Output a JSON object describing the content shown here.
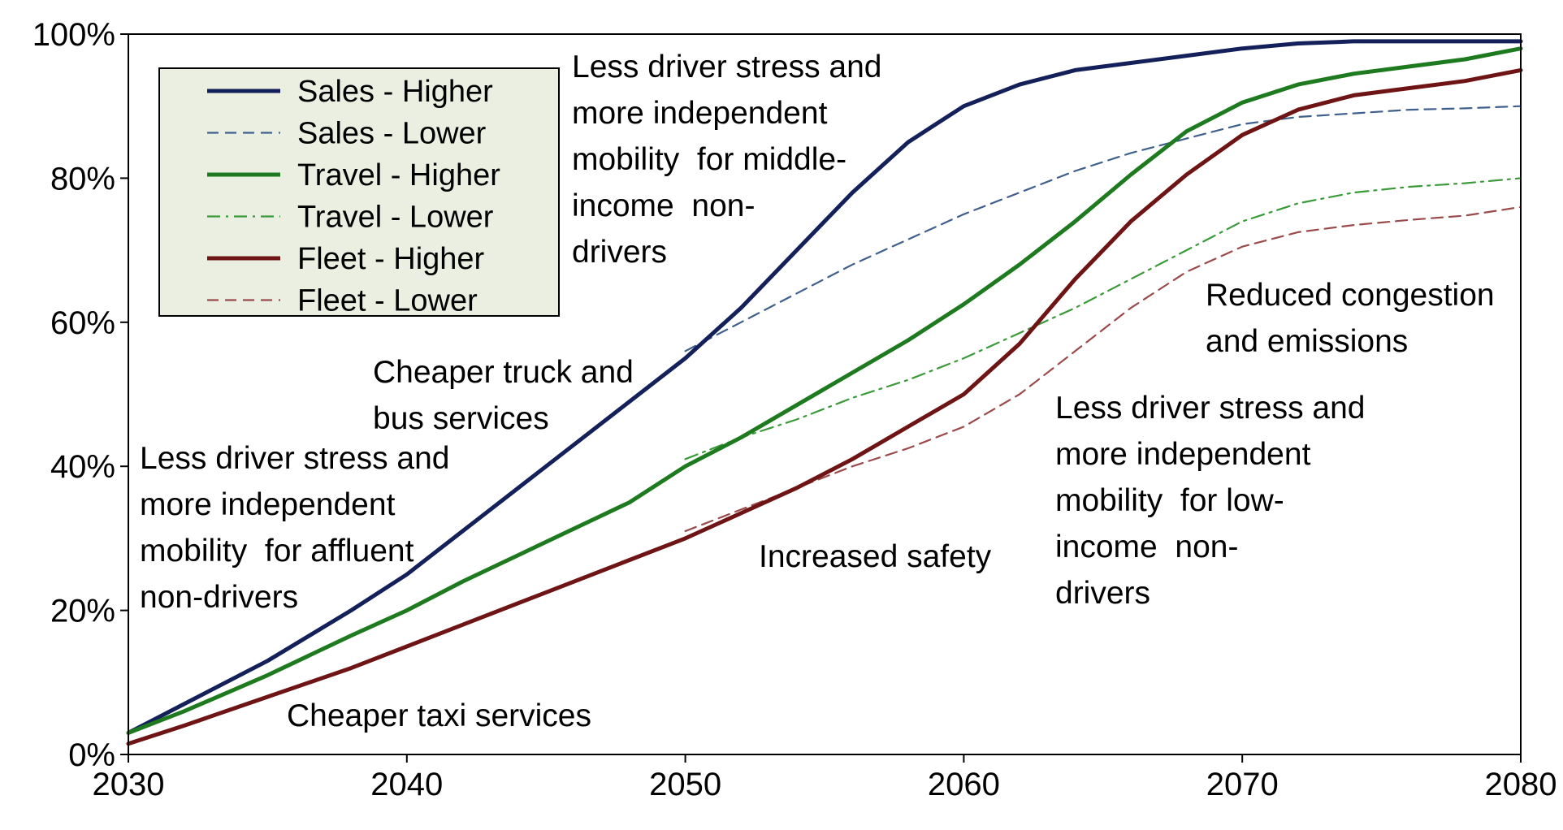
{
  "chart_data": {
    "type": "line",
    "title": "",
    "xlabel": "",
    "ylabel": "",
    "xlim": [
      2030,
      2080
    ],
    "ylim": [
      0,
      100
    ],
    "grid": false,
    "legend_position": "top-left",
    "x_ticks": [
      "2030",
      "2040",
      "2050",
      "2060",
      "2070",
      "2080"
    ],
    "y_ticks": [
      "0%",
      "20%",
      "40%",
      "60%",
      "80%",
      "100%"
    ],
    "series": [
      {
        "name": "Sales - Higher",
        "color": "#14205a",
        "style": "solid",
        "x": [
          2030,
          2032,
          2035,
          2038,
          2040,
          2042,
          2045,
          2048,
          2050,
          2052,
          2054,
          2056,
          2058,
          2060,
          2062,
          2064,
          2066,
          2068,
          2070,
          2072,
          2074,
          2076,
          2078,
          2080
        ],
        "y": [
          3,
          7,
          13,
          20,
          25,
          31,
          40,
          49,
          55,
          62,
          70,
          78,
          85,
          90,
          93,
          95,
          96,
          97,
          98,
          98.7,
          99,
          99,
          99,
          99
        ]
      },
      {
        "name": "Sales - Lower",
        "color": "#3f5f8c",
        "style": "dashed",
        "x": [
          2050,
          2052,
          2054,
          2056,
          2058,
          2060,
          2062,
          2064,
          2066,
          2068,
          2070,
          2072,
          2074,
          2076,
          2078,
          2080
        ],
        "y": [
          56,
          60,
          64,
          68,
          71.5,
          75,
          78,
          81,
          83.5,
          85.5,
          87.5,
          88.5,
          89,
          89.5,
          89.7,
          90
        ]
      },
      {
        "name": "Travel - Higher",
        "color": "#1e7a1e",
        "style": "solid",
        "x": [
          2030,
          2032,
          2035,
          2038,
          2040,
          2042,
          2045,
          2048,
          2050,
          2052,
          2054,
          2056,
          2058,
          2060,
          2062,
          2064,
          2066,
          2068,
          2070,
          2072,
          2074,
          2076,
          2078,
          2080
        ],
        "y": [
          3,
          6,
          11,
          16.5,
          20,
          24,
          29.5,
          35,
          40,
          44,
          48.5,
          53,
          57.5,
          62.5,
          68,
          74,
          80.5,
          86.5,
          90.5,
          93,
          94.5,
          95.5,
          96.5,
          98
        ]
      },
      {
        "name": "Travel - Lower",
        "color": "#3a9a3a",
        "style": "dashdot",
        "x": [
          2050,
          2052,
          2054,
          2056,
          2058,
          2060,
          2062,
          2064,
          2066,
          2068,
          2070,
          2072,
          2074,
          2076,
          2078,
          2080
        ],
        "y": [
          41,
          44,
          46.5,
          49.5,
          52,
          55,
          58.5,
          62,
          66,
          70,
          74,
          76.5,
          78,
          78.8,
          79.3,
          80
        ]
      },
      {
        "name": "Fleet - Higher",
        "color": "#6e1414",
        "style": "solid",
        "x": [
          2030,
          2032,
          2035,
          2038,
          2040,
          2042,
          2045,
          2048,
          2050,
          2052,
          2054,
          2056,
          2058,
          2060,
          2062,
          2064,
          2066,
          2068,
          2070,
          2072,
          2074,
          2076,
          2078,
          2080
        ],
        "y": [
          1.5,
          4,
          8,
          12,
          15,
          18,
          22.5,
          27,
          30,
          33.5,
          37,
          41,
          45.5,
          50,
          57,
          66,
          74,
          80.5,
          86,
          89.5,
          91.5,
          92.5,
          93.5,
          95
        ]
      },
      {
        "name": "Fleet - Lower",
        "color": "#9a4a4a",
        "style": "dashed",
        "x": [
          2050,
          2052,
          2054,
          2056,
          2058,
          2060,
          2062,
          2064,
          2066,
          2068,
          2070,
          2072,
          2074,
          2076,
          2078,
          2080
        ],
        "y": [
          31,
          34,
          37,
          40,
          42.5,
          45.5,
          50,
          56,
          62,
          67,
          70.5,
          72.5,
          73.5,
          74.2,
          74.8,
          76
        ]
      }
    ],
    "annotations": [
      {
        "lines": [
          "Less driver stress and",
          "more independent",
          "mobility  for middle-",
          "income  non-",
          "drivers"
        ]
      },
      {
        "lines": [
          "Cheaper truck and",
          "bus services"
        ]
      },
      {
        "lines": [
          "Less driver stress and",
          "more independent",
          "mobility  for affluent",
          "non-drivers"
        ]
      },
      {
        "lines": [
          "Cheaper taxi services"
        ]
      },
      {
        "lines": [
          "Increased safety"
        ]
      },
      {
        "lines": [
          "Reduced congestion",
          "and emissions"
        ]
      },
      {
        "lines": [
          "Less driver stress and",
          "more independent",
          "mobility  for low-",
          "income  non-",
          "drivers"
        ]
      }
    ]
  }
}
